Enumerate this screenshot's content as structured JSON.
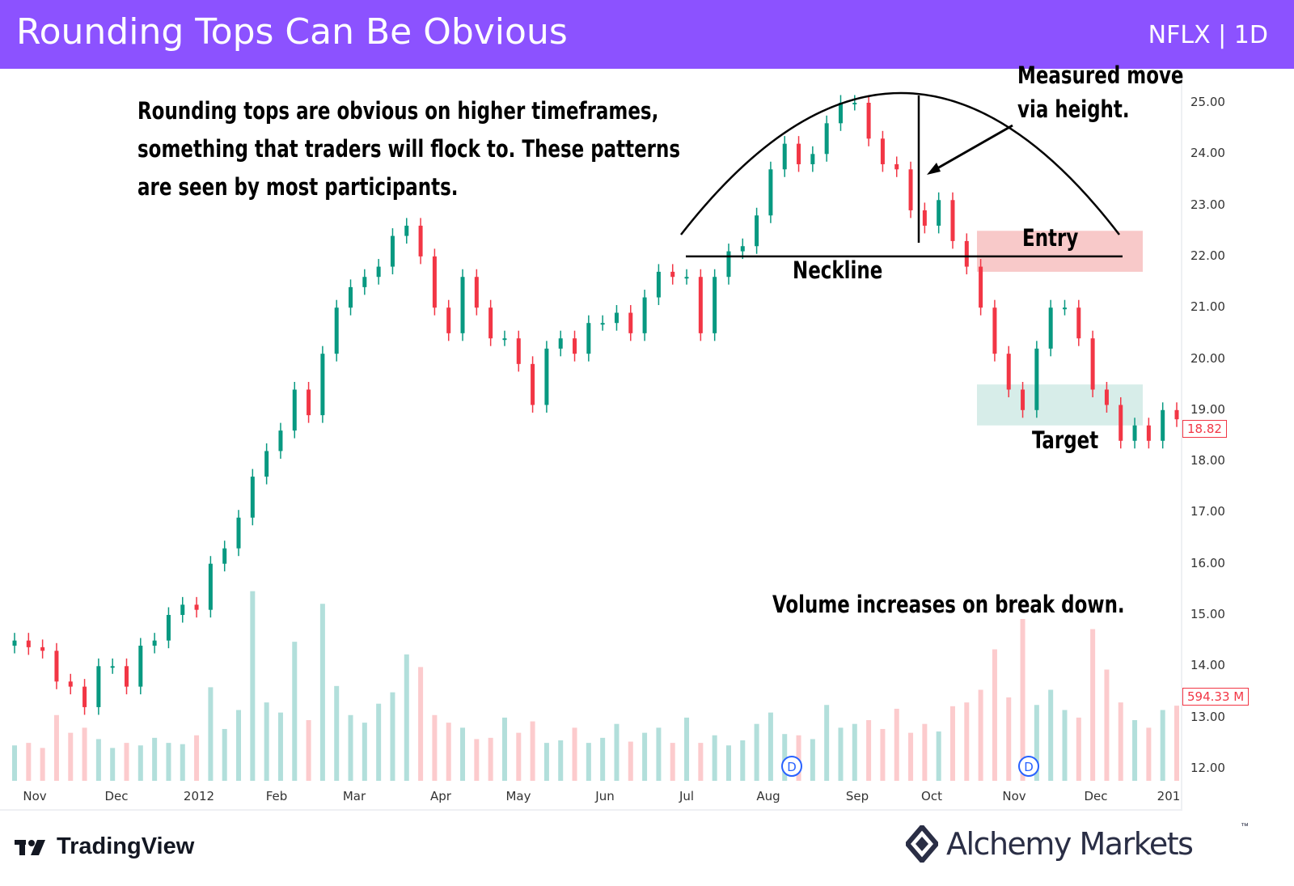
{
  "header": {
    "title": "Rounding Tops Can Be Obvious",
    "ticker": "NFLX | 1D",
    "background": "#8c52ff"
  },
  "annotations": {
    "intro": [
      "Rounding tops are obvious on higher timeframes,",
      "something that traders will flock to. These patterns",
      "are seen by most participants."
    ],
    "measured": [
      "Measured move",
      "via height."
    ],
    "neckline": "Neckline",
    "entry": "Entry",
    "target": "Target",
    "volume": "Volume increases on break down."
  },
  "price_badge": "18.82",
  "volume_badge": "594.33 M",
  "dividend_marker": "D",
  "footer": {
    "tradingview": "TradingView",
    "alchemy": "Alchemy Markets",
    "tm": "™"
  },
  "chart_data": {
    "type": "candlestick",
    "title": "",
    "colors": {
      "up": "#089981",
      "down": "#f23645",
      "volume_up": "#b2dfdb",
      "volume_down": "#fccbcd",
      "entry_zone": "#f8c9c9",
      "target_zone": "#cde9e4"
    },
    "x_ticks": [
      "Nov",
      "Dec",
      "2012",
      "Feb",
      "Mar",
      "Apr",
      "May",
      "Jun",
      "Jul",
      "Aug",
      "Sep",
      "Oct",
      "Nov",
      "Dec",
      "201"
    ],
    "y_ticks": [
      "25.00",
      "24.00",
      "23.00",
      "22.00",
      "21.00",
      "20.00",
      "19.00",
      "18.00",
      "17.00",
      "16.00",
      "15.00",
      "14.00",
      "13.00",
      "12.00"
    ],
    "ylim": [
      12,
      25
    ],
    "grid": false,
    "closes": [
      14.5,
      14.37,
      14.3,
      13.7,
      13.6,
      13.2,
      14.0,
      14.0,
      13.6,
      14.4,
      14.5,
      15.0,
      15.2,
      15.1,
      16.0,
      16.3,
      16.9,
      17.7,
      18.2,
      18.6,
      19.4,
      18.9,
      20.1,
      21.0,
      21.4,
      21.6,
      21.8,
      22.4,
      22.6,
      22.0,
      21.0,
      20.5,
      21.6,
      21.0,
      20.4,
      20.4,
      19.9,
      19.1,
      20.2,
      20.4,
      20.1,
      20.7,
      20.7,
      20.9,
      20.5,
      21.2,
      21.7,
      21.6,
      21.6,
      20.5,
      21.6,
      22.1,
      22.2,
      22.8,
      23.7,
      24.2,
      23.8,
      24.0,
      24.6,
      25.0,
      25.0,
      24.3,
      23.8,
      23.7,
      22.9,
      22.6,
      23.1,
      22.3,
      21.8,
      21.0,
      20.1,
      19.4,
      19.0,
      20.2,
      21.0,
      21.0,
      20.4,
      19.4,
      19.1,
      18.4,
      18.7,
      18.4,
      19.0,
      18.82
    ],
    "volumes_m": [
      280,
      300,
      260,
      520,
      380,
      420,
      330,
      260,
      300,
      280,
      340,
      300,
      290,
      360,
      740,
      410,
      560,
      1500,
      620,
      540,
      1100,
      480,
      1400,
      750,
      520,
      460,
      610,
      700,
      1000,
      900,
      520,
      460,
      420,
      330,
      340,
      500,
      380,
      470,
      300,
      320,
      420,
      300,
      340,
      450,
      310,
      380,
      420,
      300,
      500,
      300,
      360,
      280,
      320,
      450,
      540,
      370,
      360,
      330,
      600,
      420,
      450,
      480,
      410,
      570,
      380,
      450,
      390,
      590,
      620,
      720,
      1040,
      660,
      1280,
      600,
      720,
      560,
      500,
      1200,
      880,
      620,
      480,
      420,
      560,
      594.33
    ],
    "neckline": 22.0,
    "entry_zone": [
      21.7,
      22.5
    ],
    "target_zone": [
      18.7,
      19.5
    ]
  }
}
